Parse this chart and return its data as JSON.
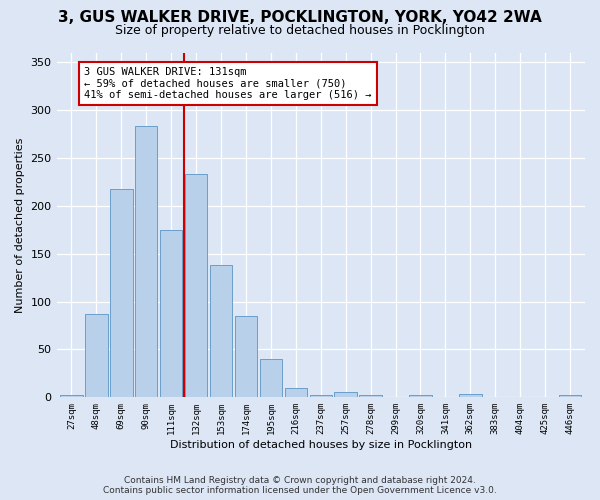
{
  "title": "3, GUS WALKER DRIVE, POCKLINGTON, YORK, YO42 2WA",
  "subtitle": "Size of property relative to detached houses in Pocklington",
  "xlabel": "Distribution of detached houses by size in Pocklington",
  "ylabel": "Number of detached properties",
  "bins": [
    "27sqm",
    "48sqm",
    "69sqm",
    "90sqm",
    "111sqm",
    "132sqm",
    "153sqm",
    "174sqm",
    "195sqm",
    "216sqm",
    "237sqm",
    "257sqm",
    "278sqm",
    "299sqm",
    "320sqm",
    "341sqm",
    "362sqm",
    "383sqm",
    "404sqm",
    "425sqm",
    "446sqm"
  ],
  "values": [
    2,
    87,
    218,
    283,
    175,
    233,
    138,
    85,
    40,
    10,
    2,
    6,
    2,
    0,
    2,
    0,
    4,
    0,
    0,
    0,
    2
  ],
  "bar_color": "#b8d0ea",
  "bar_edge_color": "#6a9fca",
  "vline_pos": 4.5,
  "vline_color": "#cc0000",
  "annotation_line1": "3 GUS WALKER DRIVE: 131sqm",
  "annotation_line2": "← 59% of detached houses are smaller (750)",
  "annotation_line3": "41% of semi-detached houses are larger (516) →",
  "annotation_box_color": "white",
  "annotation_box_edge": "#cc0000",
  "ylim": [
    0,
    360
  ],
  "yticks": [
    0,
    50,
    100,
    150,
    200,
    250,
    300,
    350
  ],
  "footer1": "Contains HM Land Registry data © Crown copyright and database right 2024.",
  "footer2": "Contains public sector information licensed under the Open Government Licence v3.0.",
  "bg_color": "#dce6f5",
  "plot_bg_color": "#dce6f5",
  "grid_color": "white",
  "title_fontsize": 11,
  "subtitle_fontsize": 9
}
